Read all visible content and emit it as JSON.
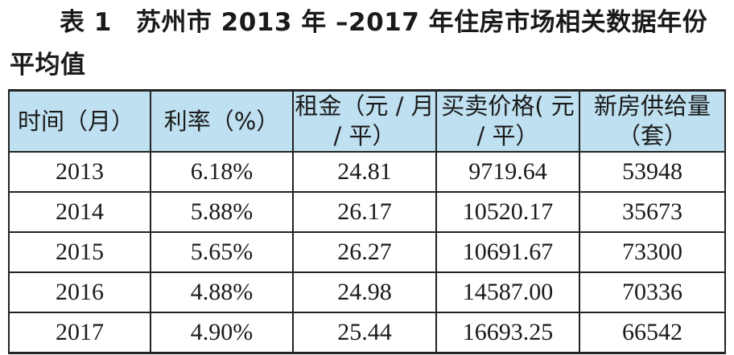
{
  "caption": {
    "label": "表 1",
    "title": "苏州市 2013 年 –2017 年住房市场相关数据年份平均值"
  },
  "table": {
    "headers": [
      "时间（月）",
      "利率（%）",
      "租金（元 / 月 / 平）",
      "买卖价格( 元 / 平）",
      "新房供给量（套）"
    ],
    "rows": [
      [
        "2013",
        "6.18%",
        "24.81",
        "9719.64",
        "53948"
      ],
      [
        "2014",
        "5.88%",
        "26.17",
        "10520.17",
        "35673"
      ],
      [
        "2015",
        "5.65%",
        "26.27",
        "10691.67",
        "73300"
      ],
      [
        "2016",
        "4.88%",
        "24.98",
        "14587.00",
        "70336"
      ],
      [
        "2017",
        "4.90%",
        "25.44",
        "16693.25",
        "66542"
      ]
    ]
  }
}
